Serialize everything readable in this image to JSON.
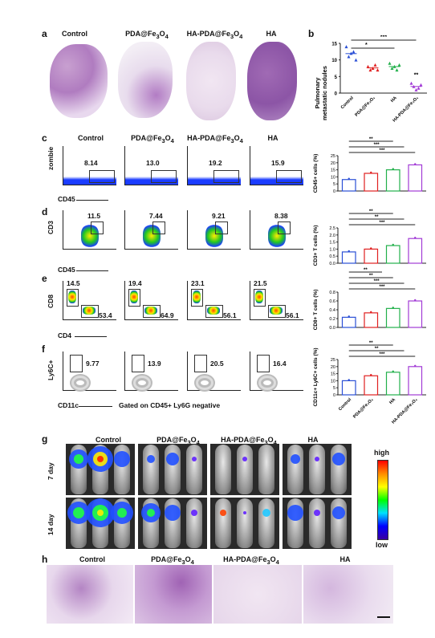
{
  "panel_letters": {
    "a": "a",
    "b": "b",
    "c": "c",
    "d": "d",
    "e": "e",
    "f": "f",
    "g": "g",
    "h": "h"
  },
  "groups_a": [
    "Control",
    "PDA@Fe3O4",
    "HA-PDA@Fe3O4",
    "HA"
  ],
  "groups_h": [
    "Control",
    "PDA@Fe3O4",
    "HA-PDA@Fe3O4",
    "HA"
  ],
  "groups_g": [
    "Control",
    "PDA@Fe3O4",
    "HA-PDA@Fe3O4",
    "HA"
  ],
  "flow_c": {
    "title_groups": [
      "Control",
      "PDA@Fe3O4",
      "HA-PDA@Fe3O4",
      "HA"
    ],
    "ylabel": "zombie",
    "xlabel": "CD45",
    "values": [
      "8.14",
      "13.0",
      "19.2",
      "15.9"
    ]
  },
  "flow_d": {
    "ylabel": "CD3",
    "xlabel": "CD45",
    "values": [
      "11.5",
      "7.44",
      "9.21",
      "8.38"
    ]
  },
  "flow_e": {
    "ylabel": "CD8",
    "xlabel": "CD4",
    "cd8": [
      "14.5",
      "19.4",
      "23.1",
      "21.5"
    ],
    "cd4": [
      "53.4",
      "64.9",
      "56.1",
      "56.1"
    ]
  },
  "flow_f": {
    "ylabel": "Ly6C+",
    "xlabel": "CD11c",
    "gating_note": "Gated on CD45+ Ly6G negative",
    "values": [
      "9.77",
      "13.9",
      "20.5",
      "16.4"
    ]
  },
  "g_rows": [
    "7 day",
    "14 day"
  ],
  "g_scale": {
    "high": "high",
    "low": "low"
  },
  "chart_data": [
    {
      "type": "scatter",
      "panel": "b",
      "ylabel": "Pulmonary metastatic nodules",
      "categories": [
        "Control",
        "PDA@Fe3O4",
        "HA",
        "HA-PDA@Fe3O4"
      ],
      "ylim": [
        0,
        15
      ],
      "yticks": [
        "0",
        "5",
        "10",
        "15"
      ],
      "points": [
        [
          14,
          11,
          12,
          12.5,
          10
        ],
        [
          8,
          7,
          7.5,
          8.5,
          7
        ],
        [
          9,
          7.5,
          8,
          7,
          8.5
        ],
        [
          3,
          2,
          1,
          1.5,
          2.5
        ]
      ],
      "significance": [
        "***",
        "*",
        "**"
      ],
      "colors": [
        "#2a4fd6",
        "#e02020",
        "#22b04b",
        "#a23bd6"
      ]
    },
    {
      "type": "bar",
      "panel": "c",
      "ylabel": "CD45+ cells (%)",
      "categories": [
        "Control",
        "PDA@Fe3O4",
        "HA",
        "HA-PDA@Fe3O4"
      ],
      "values": [
        8.1,
        12.5,
        15,
        18.5
      ],
      "ylim": [
        0,
        25
      ],
      "yticks": [
        "0",
        "5",
        "10",
        "15",
        "20",
        "25"
      ],
      "significance": [
        "***",
        "***",
        "**",
        "**"
      ]
    },
    {
      "type": "bar",
      "panel": "d",
      "ylabel": "CD3+ T cells (%)",
      "categories": [
        "Control",
        "PDA@Fe3O4",
        "HA",
        "HA-PDA@Fe3O4"
      ],
      "values": [
        0.8,
        1.0,
        1.25,
        1.75
      ],
      "ylim": [
        0,
        2.5
      ],
      "yticks": [
        "0.0",
        "0.5",
        "1.0",
        "1.5",
        "2.0",
        "2.5"
      ],
      "significance": [
        "***",
        "**",
        "**"
      ]
    },
    {
      "type": "bar",
      "panel": "e",
      "ylabel": "CD8+ T cells (%)",
      "categories": [
        "Control",
        "PDA@Fe3O4",
        "HA",
        "HA-PDA@Fe3O4"
      ],
      "values": [
        0.23,
        0.33,
        0.43,
        0.6
      ],
      "ylim": [
        0,
        0.8
      ],
      "yticks": [
        "0.0",
        "0.2",
        "0.4",
        "0.6",
        "0.8"
      ],
      "significance": [
        "***",
        "***",
        "**",
        "**"
      ]
    },
    {
      "type": "bar",
      "panel": "f",
      "ylabel": "CD11c+ Ly6C+ cells (%)",
      "categories": [
        "Control",
        "PDA@Fe3O4",
        "HA",
        "HA-PDA@Fe3O4"
      ],
      "values": [
        10,
        13.5,
        16,
        20
      ],
      "ylim": [
        0,
        25
      ],
      "yticks": [
        "0",
        "5",
        "10",
        "15",
        "20",
        "25"
      ],
      "significance": [
        "***",
        "**",
        "**"
      ]
    }
  ]
}
